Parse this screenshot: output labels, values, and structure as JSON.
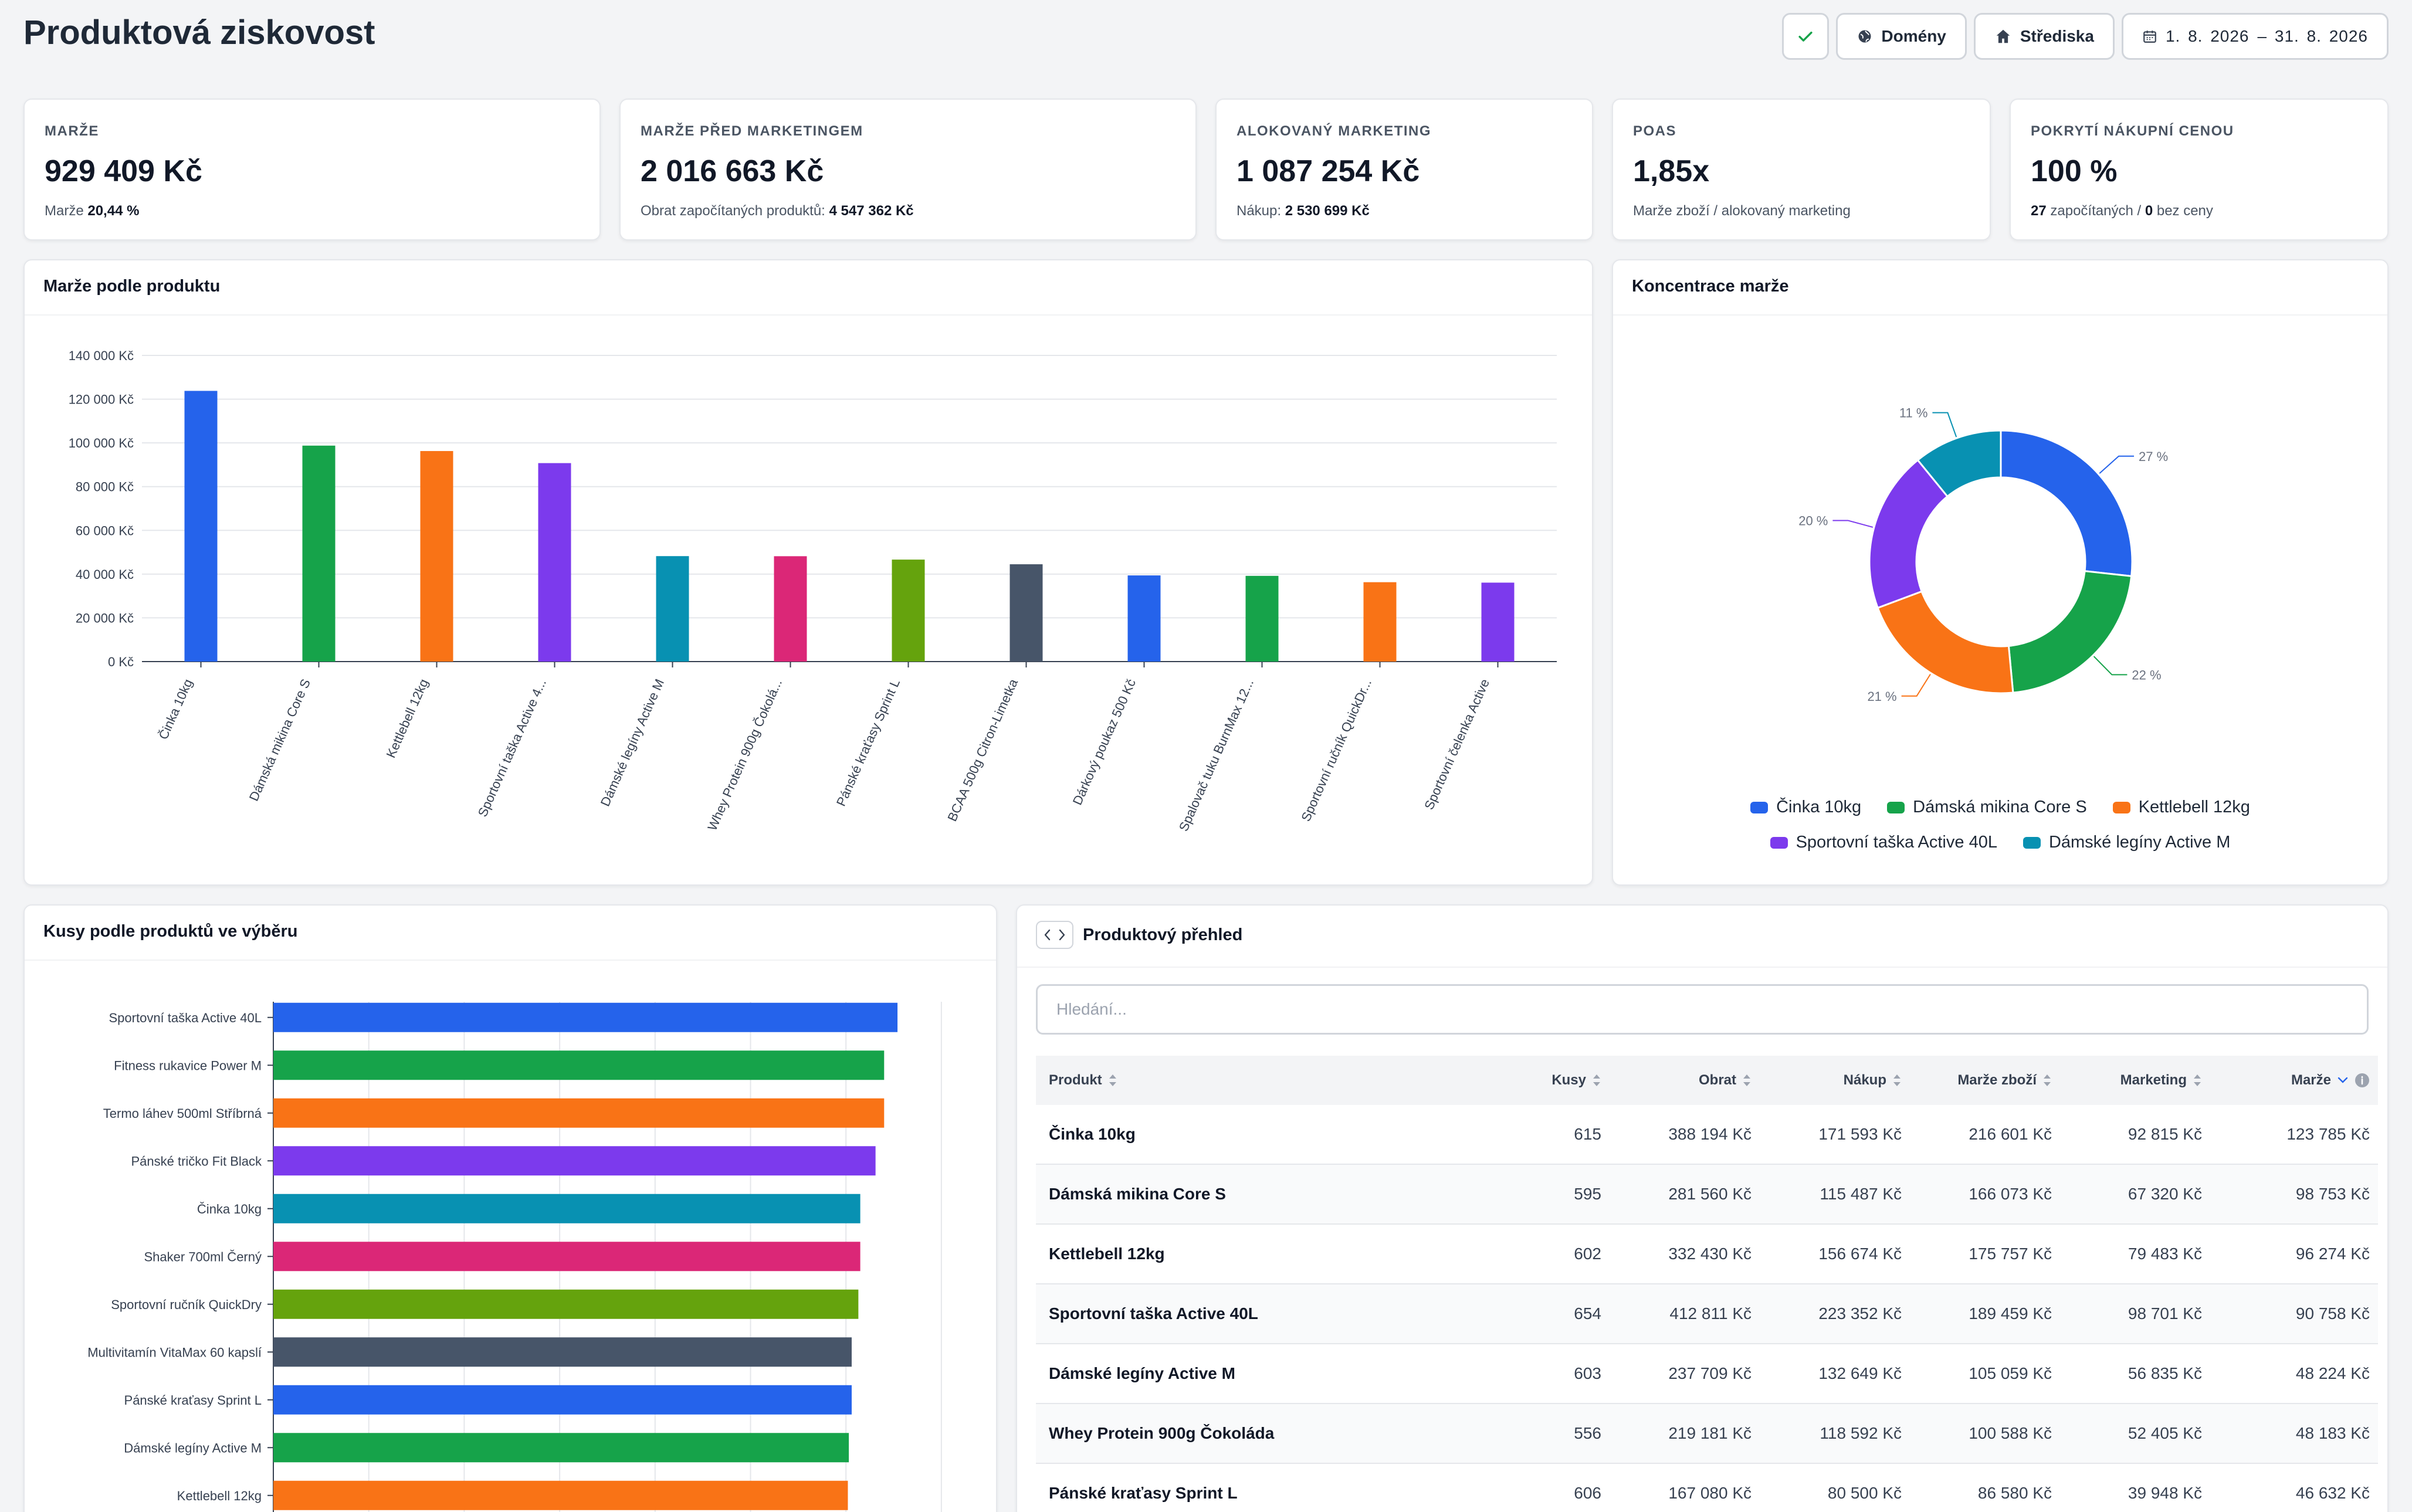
{
  "page_title": "Produktová ziskovost",
  "toolbar": {
    "domains_label": "Domény",
    "centers_label": "Střediska",
    "date_from": "1. 8. 2026",
    "date_to": "– 31. 8. 2026"
  },
  "kpis": [
    {
      "label": "Marže",
      "value": "929 409 Kč",
      "sub_text": "Marže",
      "sub_strong": "20,44 %"
    },
    {
      "label": "Marže před marketingem",
      "value": "2 016 663 Kč",
      "sub_text": "Obrat započítaných produktů:",
      "sub_strong": "4 547 362 Kč"
    },
    {
      "label": "Alokovaný marketing",
      "value": "1 087 254 Kč",
      "sub_text": "Nákup:",
      "sub_strong": "2 530 699 Kč"
    },
    {
      "label": "POAS",
      "value": "1,85x",
      "sub_text": "Marže zboží / alokovaný marketing",
      "sub_strong": ""
    },
    {
      "label": "Pokrytí nákupní cenou",
      "value": "100 %",
      "sub_pre_strong": "27",
      "sub_text": "započítaných /",
      "sub_strong": "0",
      "sub_post": "bez ceny"
    }
  ],
  "colors": {
    "blue": "#2563eb",
    "green": "#16a34a",
    "orange": "#f97316",
    "purple": "#7c3aed",
    "cyan": "#0891b2",
    "pink": "#db2777",
    "lime": "#65a30d",
    "slate": "#475569"
  },
  "margin_chart": {
    "title": "Marže podle produktu",
    "chart_data": {
      "type": "bar",
      "categories": [
        "Činka 10kg",
        "Dámská mikina Core S",
        "Kettlebell 12kg",
        "Sportovní taška Active 4...",
        "Dámské legíny Active M",
        "Whey Protein 900g Čokolá...",
        "Pánské kraťasy Sprint L",
        "BCAA 500g Citron-Limetka",
        "Dárkový poukaz 500 Kč",
        "Spalovač tuku BurnMax 12...",
        "Sportovní ručník QuickDr...",
        "Sportovní čelenka Active"
      ],
      "values": [
        123785,
        98753,
        96274,
        90758,
        48224,
        48183,
        46632,
        44500,
        39400,
        39200,
        36300,
        36100
      ],
      "colors": [
        "#2563eb",
        "#16a34a",
        "#f97316",
        "#7c3aed",
        "#0891b2",
        "#db2777",
        "#65a30d",
        "#475569",
        "#2563eb",
        "#16a34a",
        "#f97316",
        "#7c3aed"
      ],
      "y_ticks": [
        "0 Kč",
        "20 000 Kč",
        "40 000 Kč",
        "60 000 Kč",
        "80 000 Kč",
        "100 000 Kč",
        "120 000 Kč",
        "140 000 Kč"
      ],
      "ylim": [
        0,
        140000
      ],
      "grid": true
    }
  },
  "concentration_chart": {
    "title": "Koncentrace marže",
    "chart_data": {
      "type": "pie",
      "labels": [
        "Činka 10kg",
        "Dámská mikina Core S",
        "Kettlebell 12kg",
        "Sportovní taška Active 40L",
        "Dámské legíny Active M"
      ],
      "values": [
        27,
        22,
        21,
        20,
        11
      ],
      "value_labels": [
        "27 %",
        "22 %",
        "21 %",
        "20 %",
        "11 %"
      ],
      "colors": [
        "#2563eb",
        "#16a34a",
        "#f97316",
        "#7c3aed",
        "#0891b2"
      ],
      "legend_position": "bottom"
    }
  },
  "units_chart": {
    "title": "Kusy podle produktů ve výběru",
    "chart_data": {
      "type": "bar",
      "orientation": "horizontal",
      "categories": [
        "Sportovní taška Active 40L",
        "Fitness rukavice Power M",
        "Termo láhev 500ml Stříbrná",
        "Pánské tričko Fit Black",
        "Činka 10kg",
        "Shaker 700ml Černý",
        "Sportovní ručník QuickDry",
        "Multivitamín VitaMax 60 kapslí",
        "Pánské kraťasy Sprint L",
        "Dámské legíny Active M",
        "Kettlebell 12kg"
      ],
      "values": [
        654,
        640,
        640,
        631,
        615,
        615,
        613,
        606,
        606,
        603,
        602
      ],
      "colors": [
        "#2563eb",
        "#16a34a",
        "#f97316",
        "#7c3aed",
        "#0891b2",
        "#db2777",
        "#65a30d",
        "#475569",
        "#2563eb",
        "#16a34a",
        "#f97316"
      ],
      "grid": true
    }
  },
  "product_table": {
    "title": "Produktový přehled",
    "search_placeholder": "Hledání...",
    "columns": [
      "Produkt",
      "Kusy",
      "Obrat",
      "Nákup",
      "Marže zboží",
      "Marketing",
      "Marže"
    ],
    "rows": [
      [
        "Činka 10kg",
        "615",
        "388 194 Kč",
        "171 593 Kč",
        "216 601 Kč",
        "92 815 Kč",
        "123 785 Kč"
      ],
      [
        "Dámská mikina Core S",
        "595",
        "281 560 Kč",
        "115 487 Kč",
        "166 073 Kč",
        "67 320 Kč",
        "98 753 Kč"
      ],
      [
        "Kettlebell 12kg",
        "602",
        "332 430 Kč",
        "156 674 Kč",
        "175 757 Kč",
        "79 483 Kč",
        "96 274 Kč"
      ],
      [
        "Sportovní taška Active 40L",
        "654",
        "412 811 Kč",
        "223 352 Kč",
        "189 459 Kč",
        "98 701 Kč",
        "90 758 Kč"
      ],
      [
        "Dámské legíny Active M",
        "603",
        "237 709 Kč",
        "132 649 Kč",
        "105 059 Kč",
        "56 835 Kč",
        "48 224 Kč"
      ],
      [
        "Whey Protein 900g Čokoláda",
        "556",
        "219 181 Kč",
        "118 592 Kč",
        "100 588 Kč",
        "52 405 Kč",
        "48 183 Kč"
      ],
      [
        "Pánské kraťasy Sprint L",
        "606",
        "167 080 Kč",
        "80 500 Kč",
        "86 580 Kč",
        "39 948 Kč",
        "46 632 Kč"
      ]
    ]
  }
}
